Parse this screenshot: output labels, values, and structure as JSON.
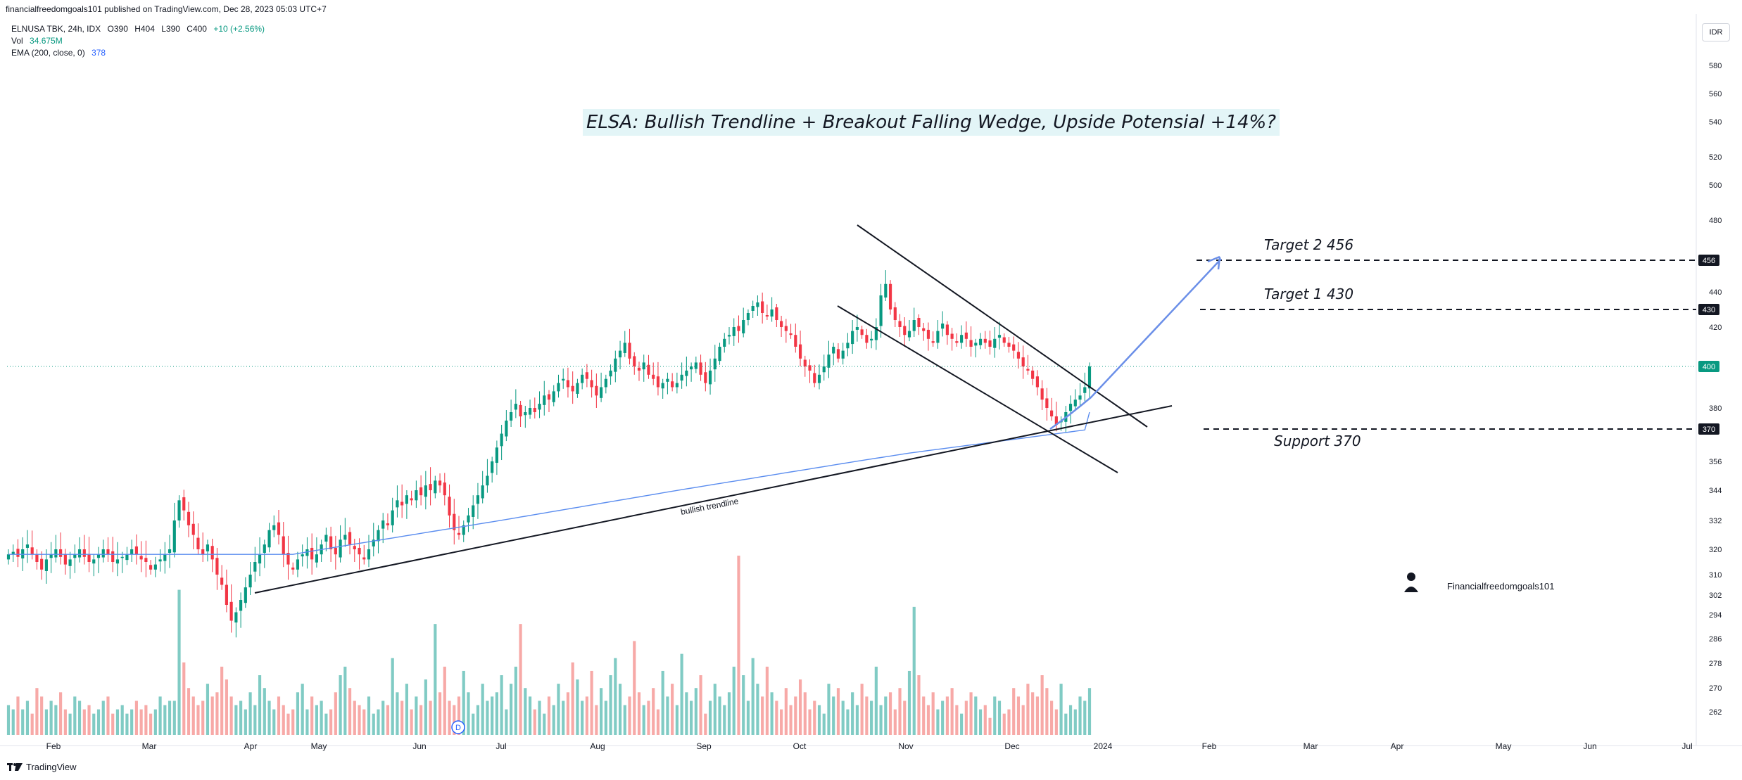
{
  "header": {
    "published": "financialfreedomgoals101 published on TradingView.com, Dec 28, 2023 05:03 UTC+7"
  },
  "legend": {
    "symbol": "ELNUSA TBK, 24h, IDX",
    "open": "O390",
    "high": "H404",
    "low": "L390",
    "close": "C400",
    "change": "+10 (+2.56%)",
    "vol_label": "Vol",
    "vol_value": "34.675M",
    "ema_label": "EMA (200, close, 0)",
    "ema_value": "378"
  },
  "currency_button": "IDR",
  "footer": {
    "brand": "TradingView",
    "logo_icon": "tradingview-logo-icon"
  },
  "colors": {
    "up": "#089981",
    "down": "#f23645",
    "vol_up": "#80cbc4",
    "vol_down": "#f7a9a7",
    "ema": "#5b8def",
    "arrow": "#6b8fe8"
  },
  "chart_data": {
    "type": "candlestick",
    "title": "ELSA: Bullish Trendline + Breakout Falling Wedge, Upside Potensial +14%?",
    "x_ticks": [
      "Feb",
      "Mar",
      "Apr",
      "May",
      "Jun",
      "Jul",
      "Aug",
      "Sep",
      "Oct",
      "Nov",
      "Dec",
      "2024",
      "Feb",
      "Mar",
      "Apr",
      "May",
      "Jun",
      "Jul"
    ],
    "y_ticks": [
      262,
      270,
      278,
      286,
      294,
      302,
      310,
      320,
      332,
      344,
      356,
      380,
      420,
      440,
      480,
      500,
      520,
      540,
      560,
      580
    ],
    "y_range": [
      256,
      586
    ],
    "y_scale": "log",
    "last_price": 400,
    "price_labels": [
      456,
      430,
      400,
      370
    ],
    "annotations": [
      {
        "text": "Target 2  456",
        "level": 456
      },
      {
        "text": "Target 1  430",
        "level": 430
      },
      {
        "text": "Support 370",
        "level": 370
      },
      {
        "text": "bullish trendline"
      }
    ],
    "ema": {
      "name": "EMA (200, close, 0)",
      "last": 378
    },
    "event_marker": "D",
    "author": "Financialfreedomgoals101",
    "candle_closes": [
      318,
      319,
      317,
      320,
      322,
      318,
      315,
      312,
      316,
      318,
      320,
      317,
      314,
      316,
      318,
      320,
      317,
      315,
      316,
      318,
      320,
      318,
      315,
      316,
      317,
      318,
      320,
      318,
      316,
      315,
      312,
      314,
      316,
      318,
      320,
      332,
      340,
      336,
      330,
      326,
      320,
      318,
      322,
      316,
      310,
      306,
      298,
      292,
      295,
      300,
      305,
      310,
      315,
      318,
      322,
      328,
      330,
      326,
      318,
      314,
      312,
      316,
      318,
      320,
      316,
      318,
      322,
      326,
      320,
      318,
      324,
      326,
      322,
      320,
      318,
      316,
      320,
      324,
      328,
      332,
      330,
      336,
      340,
      338,
      342,
      340,
      344,
      342,
      346,
      344,
      348,
      346,
      342,
      334,
      328,
      326,
      330,
      334,
      338,
      342,
      346,
      350,
      356,
      362,
      368,
      374,
      378,
      382,
      376,
      378,
      380,
      378,
      382,
      386,
      384,
      388,
      392,
      394,
      390,
      388,
      392,
      396,
      394,
      390,
      386,
      390,
      394,
      398,
      404,
      408,
      412,
      404,
      400,
      398,
      402,
      396,
      394,
      390,
      392,
      394,
      390,
      392,
      396,
      398,
      400,
      402,
      396,
      392,
      398,
      404,
      410,
      414,
      416,
      420,
      418,
      424,
      428,
      432,
      434,
      428,
      426,
      430,
      424,
      420,
      418,
      416,
      410,
      404,
      400,
      398,
      392,
      396,
      400,
      406,
      410,
      404,
      408,
      412,
      418,
      420,
      416,
      412,
      414,
      420,
      438,
      444,
      430,
      424,
      420,
      416,
      418,
      424,
      420,
      418,
      414,
      412,
      418,
      422,
      416,
      414,
      412,
      416,
      414,
      410,
      412,
      414,
      412,
      410,
      414,
      416,
      412,
      410,
      408,
      404,
      400,
      398,
      394,
      390,
      384,
      380,
      376,
      372,
      374,
      378,
      382,
      384,
      386,
      390,
      400
    ],
    "volumes": [
      7,
      6,
      9,
      6,
      8,
      5,
      11,
      9,
      6,
      8,
      7,
      10,
      6,
      5,
      9,
      8,
      6,
      7,
      5,
      6,
      8,
      9,
      5,
      6,
      7,
      5,
      6,
      8,
      6,
      7,
      5,
      6,
      9,
      7,
      8,
      8,
      34,
      17,
      11,
      9,
      7,
      8,
      12,
      9,
      10,
      16,
      13,
      9,
      7,
      8,
      6,
      10,
      7,
      14,
      11,
      8,
      6,
      9,
      7,
      5,
      6,
      10,
      12,
      6,
      9,
      7,
      8,
      5,
      6,
      10,
      14,
      16,
      11,
      8,
      7,
      6,
      9,
      5,
      6,
      8,
      7,
      18,
      10,
      8,
      12,
      6,
      9,
      7,
      13,
      8,
      26,
      10,
      16,
      8,
      7,
      9,
      15,
      10,
      5,
      7,
      12,
      8,
      9,
      10,
      14,
      6,
      12,
      16,
      26,
      11,
      9,
      6,
      8,
      5,
      9,
      7,
      12,
      8,
      10,
      17,
      13,
      8,
      9,
      15,
      7,
      11,
      8,
      14,
      18,
      12,
      7,
      9,
      22,
      10,
      7,
      8,
      11,
      6,
      15,
      9,
      12,
      7,
      19,
      10,
      8,
      11,
      14,
      5,
      8,
      12,
      9,
      7,
      10,
      16,
      42,
      14,
      8,
      18,
      12,
      9,
      16,
      10,
      8,
      6,
      11,
      7,
      9,
      13,
      10,
      6,
      8,
      7,
      5,
      12,
      9,
      11,
      8,
      6,
      10,
      7,
      12,
      9,
      8,
      16,
      7,
      9,
      10,
      6,
      11,
      8,
      15,
      30,
      14,
      9,
      7,
      10,
      6,
      8,
      9,
      11,
      7,
      5,
      8,
      10,
      9,
      6,
      7,
      4,
      9,
      8,
      5,
      6,
      11,
      9,
      7,
      12,
      10,
      9,
      14,
      11,
      8,
      6,
      12,
      5,
      7,
      6,
      9,
      8,
      11
    ]
  }
}
